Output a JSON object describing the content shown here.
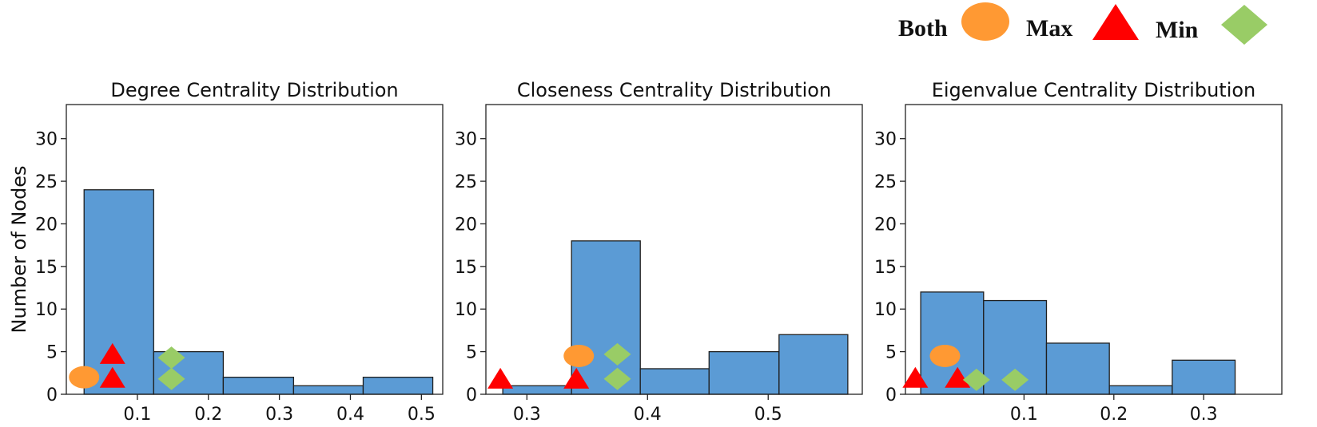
{
  "legend": {
    "items": [
      {
        "label": "Both",
        "marker": "ellipse",
        "color": "#FF9933"
      },
      {
        "label": "Max",
        "marker": "triangle",
        "color": "#FF0000"
      },
      {
        "label": "Min",
        "marker": "diamond",
        "color": "#99CC66"
      }
    ]
  },
  "colors": {
    "bar": "#5B9BD5",
    "bar_edge": "#1f1f1f",
    "axes": "#222222"
  },
  "chart_data": [
    {
      "type": "bar",
      "title": "Degree Centrality Distribution",
      "ylabel": "Number of Nodes",
      "xlim": [
        0.0,
        0.53
      ],
      "ylim": [
        0,
        34
      ],
      "xticks": [
        0.1,
        0.2,
        0.3,
        0.4,
        0.5
      ],
      "xtick_labels": [
        "0.1",
        "0.2",
        "0.3",
        "0.4",
        "0.5"
      ],
      "yticks": [
        0,
        5,
        10,
        15,
        20,
        25,
        30
      ],
      "ytick_labels": [
        "0",
        "5",
        "10",
        "15",
        "20",
        "25",
        "30"
      ],
      "bin_edges": [
        0.025,
        0.123,
        0.221,
        0.32,
        0.418,
        0.516
      ],
      "values": [
        24,
        5,
        2,
        1,
        2
      ],
      "markers": [
        {
          "kind": "Both",
          "x": 0.025,
          "y": 2
        },
        {
          "kind": "Max",
          "x": 0.065,
          "y": 4.6
        },
        {
          "kind": "Max",
          "x": 0.065,
          "y": 1.8
        },
        {
          "kind": "Min",
          "x": 0.148,
          "y": 4.3
        },
        {
          "kind": "Min",
          "x": 0.148,
          "y": 1.8
        }
      ]
    },
    {
      "type": "bar",
      "title": "Closeness Centrality Distribution",
      "ylabel": "",
      "xlim": [
        0.266,
        0.578
      ],
      "ylim": [
        0,
        34
      ],
      "xticks": [
        0.3,
        0.4,
        0.5
      ],
      "xtick_labels": [
        "0.3",
        "0.4",
        "0.5"
      ],
      "yticks": [
        0,
        5,
        10,
        15,
        20,
        25,
        30
      ],
      "ytick_labels": [
        "0",
        "5",
        "10",
        "15",
        "20",
        "25",
        "30"
      ],
      "bin_edges": [
        0.28,
        0.337,
        0.394,
        0.451,
        0.509,
        0.566
      ],
      "values": [
        1,
        18,
        3,
        5,
        7
      ],
      "markers": [
        {
          "kind": "Max",
          "x": 0.278,
          "y": 1.7
        },
        {
          "kind": "Max",
          "x": 0.341,
          "y": 1.7
        },
        {
          "kind": "Both",
          "x": 0.343,
          "y": 4.5
        },
        {
          "kind": "Min",
          "x": 0.375,
          "y": 4.7
        },
        {
          "kind": "Min",
          "x": 0.375,
          "y": 1.8
        }
      ]
    },
    {
      "type": "bar",
      "title": "Eigenvalue Centrality Distribution",
      "ylabel": "",
      "xlim": [
        -0.032,
        0.387
      ],
      "ylim": [
        0,
        34
      ],
      "xticks": [
        0.1,
        0.2,
        0.3
      ],
      "xtick_labels": [
        "0.1",
        "0.2",
        "0.3"
      ],
      "yticks": [
        0,
        5,
        10,
        15,
        20,
        25,
        30
      ],
      "ytick_labels": [
        "0",
        "5",
        "10",
        "15",
        "20",
        "25",
        "30"
      ],
      "bin_edges": [
        -0.015,
        0.055,
        0.125,
        0.195,
        0.265,
        0.335
      ],
      "values": [
        12,
        11,
        6,
        1,
        4
      ],
      "markers": [
        {
          "kind": "Max",
          "x": -0.021,
          "y": 1.8
        },
        {
          "kind": "Both",
          "x": 0.012,
          "y": 4.5
        },
        {
          "kind": "Max",
          "x": 0.026,
          "y": 1.8
        },
        {
          "kind": "Min",
          "x": 0.047,
          "y": 1.7
        },
        {
          "kind": "Min",
          "x": 0.09,
          "y": 1.7
        }
      ]
    }
  ]
}
